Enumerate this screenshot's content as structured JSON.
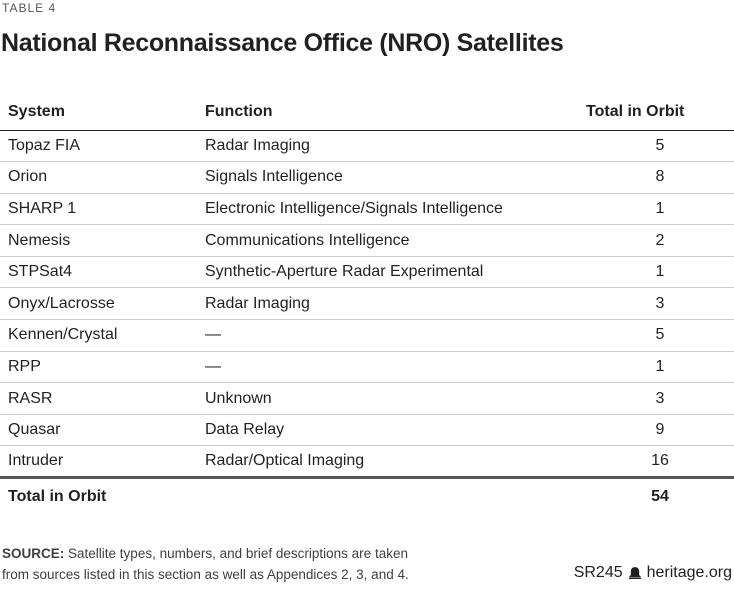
{
  "table_label": "TABLE 4",
  "chart_data": {
    "type": "table",
    "title": "National Reconnaissance Office (NRO) Satellites",
    "columns": [
      "System",
      "Function",
      "Total in Orbit"
    ],
    "rows": [
      [
        "Topaz FIA",
        "Radar Imaging",
        "5"
      ],
      [
        "Orion",
        "Signals Intelligence",
        "8"
      ],
      [
        "SHARP 1",
        "Electronic Intelligence/Signals Intelligence",
        "1"
      ],
      [
        "Nemesis",
        "Communications Intelligence",
        "2"
      ],
      [
        "STPSat4",
        "Synthetic-Aperture Radar Experimental",
        "1"
      ],
      [
        "Onyx/Lacrosse",
        "Radar Imaging",
        "3"
      ],
      [
        "Kennen/Crystal",
        "—",
        "5"
      ],
      [
        "RPP",
        "—",
        "1"
      ],
      [
        "RASR",
        "Unknown",
        "3"
      ],
      [
        "Quasar",
        "Data Relay",
        "9"
      ],
      [
        "Intruder",
        "Radar/Optical Imaging",
        "16"
      ]
    ],
    "total_row_label": "Total in Orbit",
    "total_in_orbit": "54"
  },
  "footer": {
    "source_label": "SOURCE:",
    "source_line1": "Satellite types, numbers, and brief descriptions are taken",
    "source_line2": "from sources listed in this section as well as Appendices 2, 3, and 4.",
    "report_id": "SR245",
    "site": "heritage.org"
  },
  "colors": {
    "text": "#231f20",
    "label_gray": "#55565b",
    "row_divider": "#cbcbcb",
    "header_rule": "#231f20",
    "total_rule": "#56575b",
    "source_text": "#404040"
  }
}
